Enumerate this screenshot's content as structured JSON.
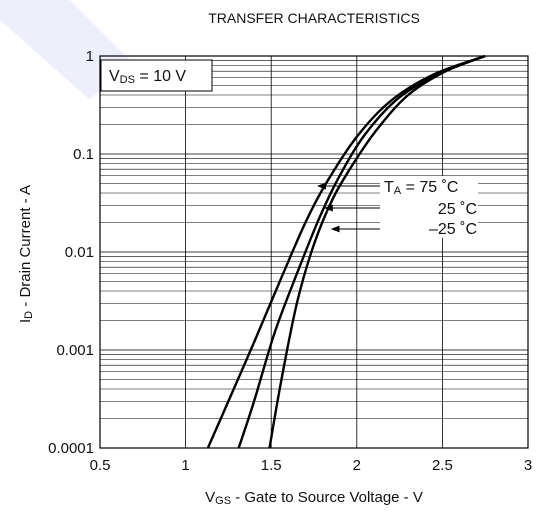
{
  "chart_data": {
    "type": "line",
    "title": "TRANSFER CHARACTERISTICS",
    "xlabel_main": "V",
    "xlabel_sub": "GS",
    "xlabel_rest": " - Gate to Source Voltage - V",
    "ylabel_main": "I",
    "ylabel_sub": "D",
    "ylabel_rest": " - Drain Current - A",
    "xlim": [
      0.5,
      3
    ],
    "ylim": [
      0.0001,
      1
    ],
    "yscale": "log",
    "grid": true,
    "x_ticks": [
      "0.5",
      "1",
      "1.5",
      "2",
      "2.5",
      "3"
    ],
    "y_ticks": [
      "0.0001",
      "0.001",
      "0.01",
      "0.1",
      "1"
    ],
    "condition": {
      "main": "V",
      "sub": "DS",
      "rest": " = 10 V"
    },
    "series": [
      {
        "name": "75 °C",
        "x": [
          1.13,
          1.25,
          1.4,
          1.55,
          1.7,
          1.82,
          2.0,
          2.2,
          2.45,
          2.75
        ],
        "y": [
          0.0001,
          0.0003,
          0.0012,
          0.005,
          0.02,
          0.05,
          0.15,
          0.35,
          0.65,
          1
        ]
      },
      {
        "name": "25 °C",
        "x": [
          1.31,
          1.4,
          1.52,
          1.65,
          1.78,
          1.9,
          2.05,
          2.25,
          2.5,
          2.75
        ],
        "y": [
          0.0001,
          0.0003,
          0.0015,
          0.006,
          0.022,
          0.06,
          0.16,
          0.38,
          0.68,
          1
        ]
      },
      {
        "name": "–25 °C",
        "x": [
          1.49,
          1.56,
          1.65,
          1.75,
          1.86,
          1.98,
          2.12,
          2.3,
          2.52,
          2.75
        ],
        "y": [
          0.0001,
          0.0005,
          0.003,
          0.012,
          0.035,
          0.08,
          0.18,
          0.4,
          0.7,
          1
        ]
      }
    ],
    "annotation": {
      "prefix_main": "T",
      "prefix_sub": "A",
      "labels": [
        " = 75 ˚C",
        "25 ˚C",
        "–25 ˚C"
      ],
      "arrow_targets": [
        {
          "x": 1.75,
          "y": 0.05
        },
        {
          "x": 1.79,
          "y": 0.028
        },
        {
          "x": 1.83,
          "y": 0.018
        }
      ]
    }
  }
}
